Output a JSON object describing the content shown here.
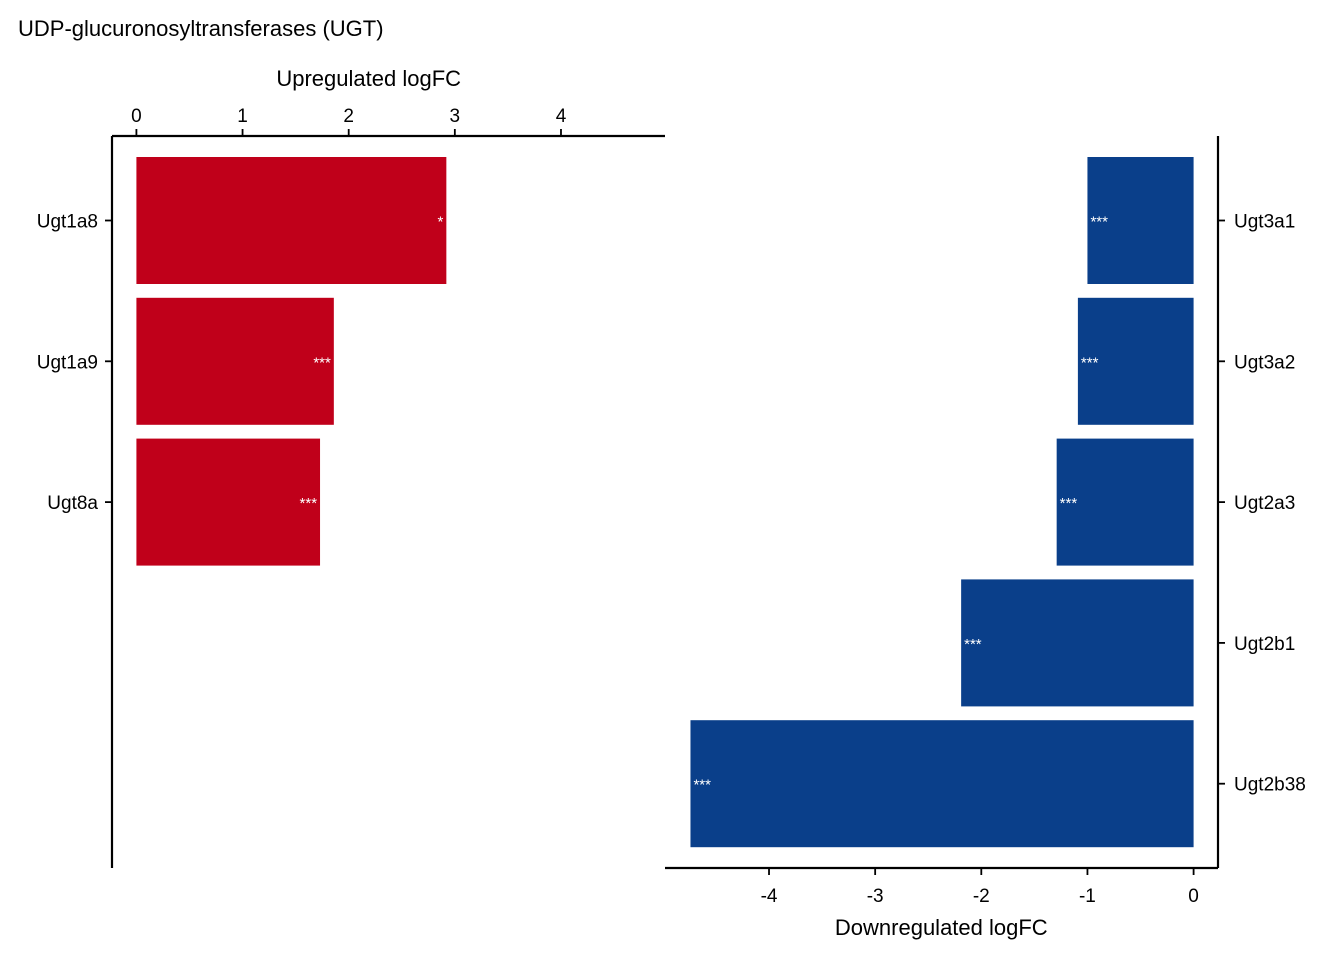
{
  "chart_data": {
    "type": "bar",
    "title": "UDP-glucuronosyltransferases (UGT)",
    "colors": {
      "up": "#c0001a",
      "down": "#0a3f8a",
      "axis": "#000000",
      "annotation": "#ffffff"
    },
    "upregulated": {
      "xlabel": "Upregulated logFC",
      "xlim": [
        -0.23,
        4.98
      ],
      "ticks": [
        0,
        1,
        2,
        3,
        4
      ],
      "tick_labels": [
        "0",
        "1",
        "2",
        "3",
        "4"
      ],
      "categories": [
        "Ugt1a8",
        "Ugt1a9",
        "Ugt8a"
      ],
      "values": [
        2.92,
        1.86,
        1.73
      ],
      "significance": [
        "*",
        "***",
        "***"
      ]
    },
    "downregulated": {
      "xlabel": "Downregulated logFC",
      "xlim": [
        -4.98,
        0.23
      ],
      "ticks": [
        -4,
        -3,
        -2,
        -1,
        0
      ],
      "tick_labels": [
        "-4",
        "-3",
        "-2",
        "-1",
        "0"
      ],
      "categories": [
        "Ugt3a1",
        "Ugt3a2",
        "Ugt2a3",
        "Ugt2b1",
        "Ugt2b38"
      ],
      "values": [
        -1.0,
        -1.09,
        -1.29,
        -2.19,
        -4.74
      ],
      "significance": [
        "***",
        "***",
        "***",
        "***",
        "***"
      ]
    }
  }
}
